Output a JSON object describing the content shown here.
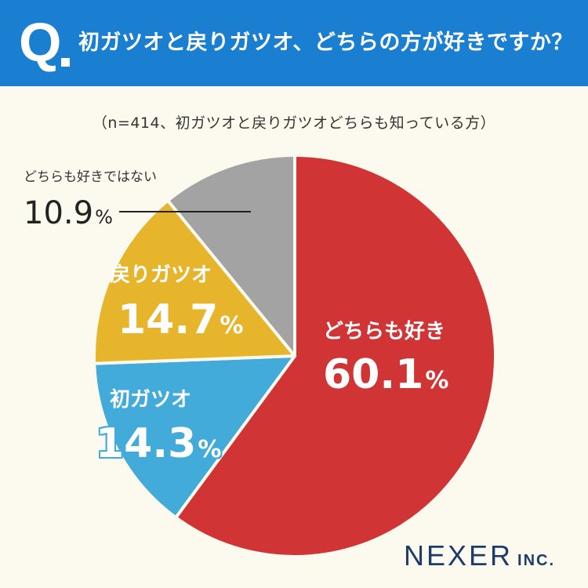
{
  "header": {
    "q_letter": "Q",
    "question": "初ガツオと戻りガツオ、どちらの方が好きですか？",
    "background_color": "#1a7fd0"
  },
  "subtitle": "（n=414、初ガツオと戻りガツオどちらも知っている方）",
  "chart_data": {
    "type": "pie",
    "start_angle_deg": 0,
    "direction": "clockwise",
    "slices": [
      {
        "label": "どちらも好き",
        "value": 60.1,
        "value_text": "60.1",
        "unit": "%",
        "color": "#d13434"
      },
      {
        "label": "初ガツオ",
        "value": 14.3,
        "value_text": "14.3",
        "unit": "%",
        "color": "#42abd9"
      },
      {
        "label": "戻りガツオ",
        "value": 14.7,
        "value_text": "14.7",
        "unit": "%",
        "color": "#e6b52c"
      },
      {
        "label": "どちらも好きではない",
        "value": 10.9,
        "value_text": "10.9",
        "unit": "%",
        "color": "#a3a3a3"
      }
    ],
    "slice_border_color": "#fcf9ee"
  },
  "logo": {
    "main": "NEXER",
    "sub": "INC."
  }
}
